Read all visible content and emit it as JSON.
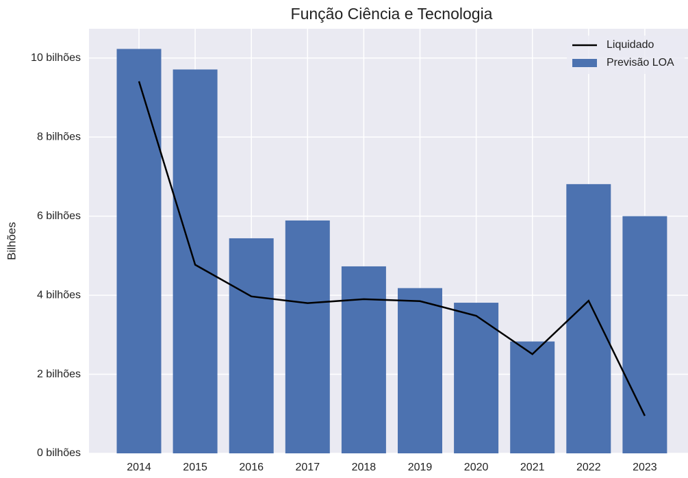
{
  "chart_data": {
    "type": "bar",
    "title": "Função Ciência e Tecnologia",
    "ylabel": "Bilhões",
    "categories": [
      "2014",
      "2015",
      "2016",
      "2017",
      "2018",
      "2019",
      "2020",
      "2021",
      "2022",
      "2023"
    ],
    "series": [
      {
        "name": "Previsão LOA",
        "type": "bar",
        "color": "#4c72b0",
        "values": [
          10.23,
          9.71,
          5.44,
          5.89,
          4.73,
          4.18,
          3.81,
          2.83,
          6.81,
          6.0
        ]
      },
      {
        "name": "Liquidado",
        "type": "line",
        "color": "#000000",
        "values": [
          9.41,
          4.77,
          3.97,
          3.8,
          3.9,
          3.85,
          3.48,
          2.51,
          3.86,
          0.95
        ]
      }
    ],
    "ylim": [
      0,
      10.74
    ],
    "yticks": [
      {
        "value": 0,
        "label": "0 bilhões"
      },
      {
        "value": 2,
        "label": "2 bilhões"
      },
      {
        "value": 4,
        "label": "4 bilhões"
      },
      {
        "value": 6,
        "label": "6 bilhões"
      },
      {
        "value": 8,
        "label": "8 bilhões"
      },
      {
        "value": 10,
        "label": "10 bilhões"
      }
    ],
    "grid": true,
    "legend": "upper right"
  }
}
